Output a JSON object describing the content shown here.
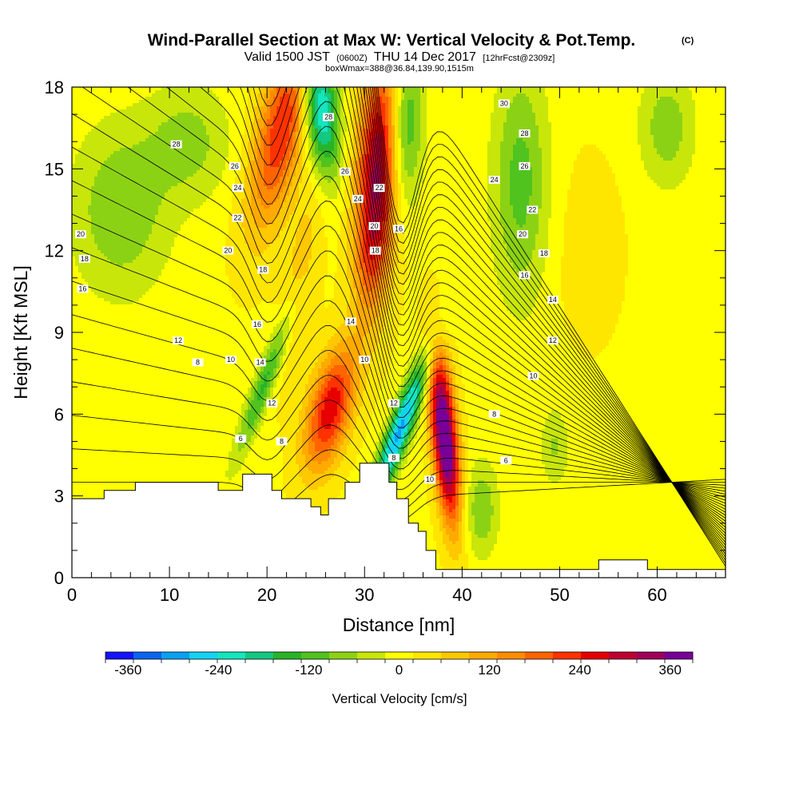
{
  "chart_data": {
    "type": "heatmap",
    "title": "Wind-Parallel Section at Max W: Vertical Velocity & Pot.Temp.",
    "title_mark": "(C)",
    "subtitle_parts": [
      "Valid 1500 JST",
      "(0600Z)",
      "THU 14 Dec 2017",
      "[12hrFcst@2309z]"
    ],
    "subtitle2": "boxWmax=388@36.84,139.90,1515m",
    "xlabel": "Distance [nm]",
    "ylabel": "Height [Kft MSL]",
    "xlim": [
      0,
      67
    ],
    "ylim": [
      0,
      18
    ],
    "x_ticks": [
      "0",
      "10",
      "20",
      "30",
      "40",
      "50",
      "60"
    ],
    "x_tick_values": [
      0,
      10,
      20,
      30,
      40,
      50,
      60
    ],
    "y_ticks": [
      "0",
      "3",
      "6",
      "9",
      "12",
      "15",
      "18"
    ],
    "y_tick_values": [
      0,
      3,
      6,
      9,
      12,
      15,
      18
    ],
    "colorbar": {
      "title": "Vertical Velocity [cm/s]",
      "range": [
        -390,
        390
      ],
      "tick_labels": [
        "-360",
        "-240",
        "-120",
        "0",
        "120",
        "240",
        "360"
      ],
      "tick_values": [
        -360,
        -240,
        -120,
        0,
        120,
        240,
        360
      ],
      "colors": [
        "#1414ff",
        "#0a64f0",
        "#0aa0f5",
        "#14d2f0",
        "#14e6be",
        "#14c882",
        "#28b428",
        "#50c31e",
        "#8cd214",
        "#c8e60a",
        "#ffff00",
        "#ffe600",
        "#ffc800",
        "#ffaa00",
        "#ff8c00",
        "#ff6400",
        "#ff3200",
        "#e60000",
        "#be0032",
        "#a0005a",
        "#780096"
      ]
    },
    "velocity_features": [
      {
        "x": 21.5,
        "y": 16.5,
        "sx": 1.8,
        "sy": 2.6,
        "tilt": 0.55,
        "amp": 230
      },
      {
        "x": 23.5,
        "y": 11.0,
        "sx": 1.2,
        "sy": 2.5,
        "tilt": 0.4,
        "amp": 70
      },
      {
        "x": 31.5,
        "y": 15.0,
        "sx": 1.6,
        "sy": 3.0,
        "tilt": 0.15,
        "amp": 330
      },
      {
        "x": 30.5,
        "y": 11.5,
        "sx": 1.0,
        "sy": 1.5,
        "tilt": 0.1,
        "amp": 60
      },
      {
        "x": 26.5,
        "y": 6.2,
        "sx": 1.6,
        "sy": 1.6,
        "tilt": 0.6,
        "amp": 260
      },
      {
        "x": 38.2,
        "y": 5.2,
        "sx": 0.9,
        "sy": 2.2,
        "tilt": -0.25,
        "amp": 430
      },
      {
        "x": 25.5,
        "y": 17.3,
        "sx": 1.3,
        "sy": 1.8,
        "tilt": -0.25,
        "amp": -270
      },
      {
        "x": 34.0,
        "y": 16.5,
        "sx": 1.3,
        "sy": 2.2,
        "tilt": 0.1,
        "amp": -190
      },
      {
        "x": 33.6,
        "y": 5.4,
        "sx": 0.9,
        "sy": 2.0,
        "tilt": 1.0,
        "amp": -300
      },
      {
        "x": 19.8,
        "y": 7.2,
        "sx": 0.8,
        "sy": 2.0,
        "tilt": 1.0,
        "amp": -150
      },
      {
        "x": 5.0,
        "y": 13.5,
        "sx": 3.5,
        "sy": 2.2,
        "tilt": 0.0,
        "amp": -100
      },
      {
        "x": 46.0,
        "y": 14.5,
        "sx": 2.0,
        "sy": 3.0,
        "tilt": 0.0,
        "amp": -120
      },
      {
        "x": 12.0,
        "y": 16.0,
        "sx": 3.0,
        "sy": 1.5,
        "tilt": 0.0,
        "amp": -80
      },
      {
        "x": 61.0,
        "y": 16.5,
        "sx": 2.0,
        "sy": 1.5,
        "tilt": 0.0,
        "amp": -90
      },
      {
        "x": 42.0,
        "y": 2.5,
        "sx": 1.2,
        "sy": 1.2,
        "tilt": 0.0,
        "amp": -100
      },
      {
        "x": 49.5,
        "y": 4.8,
        "sx": 1.0,
        "sy": 1.0,
        "tilt": 0.0,
        "amp": -70
      },
      {
        "x": 53.0,
        "y": 12.0,
        "sx": 2.5,
        "sy": 2.5,
        "tilt": 0.0,
        "amp": 30
      }
    ],
    "terrain": [
      [
        0,
        2.9
      ],
      [
        3.3,
        2.9
      ],
      [
        3.3,
        3.2
      ],
      [
        6.5,
        3.2
      ],
      [
        6.5,
        3.5
      ],
      [
        15,
        3.5
      ],
      [
        15,
        3.2
      ],
      [
        17.5,
        3.2
      ],
      [
        17.5,
        3.8
      ],
      [
        20.5,
        3.8
      ],
      [
        20.5,
        3.2
      ],
      [
        21.5,
        3.2
      ],
      [
        21.5,
        2.9
      ],
      [
        24.5,
        2.9
      ],
      [
        24.5,
        2.6
      ],
      [
        25.5,
        2.6
      ],
      [
        25.5,
        2.3
      ],
      [
        26.3,
        2.3
      ],
      [
        26.3,
        2.9
      ],
      [
        28,
        2.9
      ],
      [
        28,
        3.5
      ],
      [
        29.5,
        3.5
      ],
      [
        29.5,
        4.2
      ],
      [
        32.5,
        4.2
      ],
      [
        32.5,
        3.5
      ],
      [
        33.3,
        3.5
      ],
      [
        33.3,
        2.9
      ],
      [
        34.5,
        2.9
      ],
      [
        34.5,
        2.0
      ],
      [
        35.5,
        2.0
      ],
      [
        35.5,
        1.7
      ],
      [
        36.3,
        1.7
      ],
      [
        36.3,
        1.0
      ],
      [
        37.3,
        1.0
      ],
      [
        37.3,
        0.3
      ],
      [
        40,
        0.3
      ],
      [
        40,
        0.3
      ],
      [
        54,
        0.3
      ],
      [
        54,
        0.65
      ],
      [
        59,
        0.65
      ],
      [
        59,
        0.3
      ],
      [
        67,
        0.3
      ]
    ],
    "theta_levels": [
      6,
      8,
      10,
      12,
      14,
      16,
      18,
      20,
      22,
      24,
      26,
      28,
      30
    ],
    "contour_labels": [
      {
        "text": "30",
        "x": 44.3,
        "y": 17.4
      },
      {
        "text": "28",
        "x": 26.3,
        "y": 16.9
      },
      {
        "text": "28",
        "x": 10.7,
        "y": 15.9
      },
      {
        "text": "28",
        "x": 46.4,
        "y": 16.3
      },
      {
        "text": "26",
        "x": 16.7,
        "y": 15.1
      },
      {
        "text": "26",
        "x": 28.0,
        "y": 14.9
      },
      {
        "text": "26",
        "x": 46.4,
        "y": 15.1
      },
      {
        "text": "24",
        "x": 17.0,
        "y": 14.3
      },
      {
        "text": "24",
        "x": 29.3,
        "y": 13.9
      },
      {
        "text": "24",
        "x": 43.3,
        "y": 14.6
      },
      {
        "text": "22",
        "x": 31.5,
        "y": 14.3
      },
      {
        "text": "22",
        "x": 17.0,
        "y": 13.2
      },
      {
        "text": "22",
        "x": 47.2,
        "y": 13.5
      },
      {
        "text": "20",
        "x": 31.0,
        "y": 12.9
      },
      {
        "text": "20",
        "x": 0.9,
        "y": 12.6
      },
      {
        "text": "20",
        "x": 16.0,
        "y": 12.0
      },
      {
        "text": "20",
        "x": 46.2,
        "y": 12.6
      },
      {
        "text": "18",
        "x": 1.3,
        "y": 11.7
      },
      {
        "text": "18",
        "x": 31.1,
        "y": 12.0
      },
      {
        "text": "18",
        "x": 48.4,
        "y": 11.9
      },
      {
        "text": "18",
        "x": 19.6,
        "y": 11.3
      },
      {
        "text": "16",
        "x": 33.5,
        "y": 12.8
      },
      {
        "text": "16",
        "x": 1.1,
        "y": 10.6
      },
      {
        "text": "16",
        "x": 46.4,
        "y": 11.1
      },
      {
        "text": "16",
        "x": 19.0,
        "y": 9.3
      },
      {
        "text": "14",
        "x": 28.6,
        "y": 9.4
      },
      {
        "text": "14",
        "x": 49.3,
        "y": 10.2
      },
      {
        "text": "14",
        "x": 19.3,
        "y": 7.9
      },
      {
        "text": "12",
        "x": 10.9,
        "y": 8.7
      },
      {
        "text": "12",
        "x": 49.3,
        "y": 8.7
      },
      {
        "text": "12",
        "x": 33.0,
        "y": 6.4
      },
      {
        "text": "12",
        "x": 20.5,
        "y": 6.4
      },
      {
        "text": "10",
        "x": 16.3,
        "y": 8.0
      },
      {
        "text": "10",
        "x": 30.0,
        "y": 8.0
      },
      {
        "text": "10",
        "x": 47.3,
        "y": 7.4
      },
      {
        "text": "10",
        "x": 36.7,
        "y": 3.6
      },
      {
        "text": "8",
        "x": 12.9,
        "y": 7.9
      },
      {
        "text": "8",
        "x": 43.3,
        "y": 6.0
      },
      {
        "text": "8",
        "x": 33.0,
        "y": 4.4
      },
      {
        "text": "8",
        "x": 21.5,
        "y": 5.0
      },
      {
        "text": "6",
        "x": 17.3,
        "y": 5.1
      },
      {
        "text": "6",
        "x": 44.5,
        "y": 4.3
      }
    ]
  }
}
